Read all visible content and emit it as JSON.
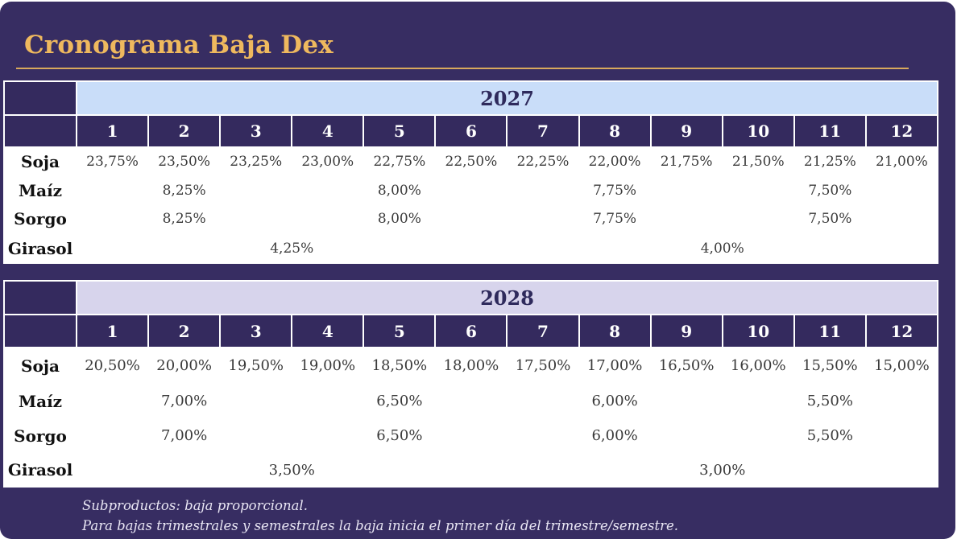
{
  "title": "Cronograma Baja Dex",
  "months": [
    "1",
    "2",
    "3",
    "4",
    "5",
    "6",
    "7",
    "8",
    "9",
    "10",
    "11",
    "12"
  ],
  "tables": [
    {
      "year": "2027",
      "soja": {
        "label": "Soja",
        "values": [
          "23,75%",
          "23,50%",
          "23,25%",
          "23,00%",
          "22,75%",
          "22,50%",
          "22,25%",
          "22,00%",
          "21,75%",
          "21,50%",
          "21,25%",
          "21,00%"
        ]
      },
      "maiz": {
        "label": "Maíz",
        "values": [
          "8,25%",
          "8,00%",
          "7,75%",
          "7,50%"
        ]
      },
      "sorgo": {
        "label": "Sorgo",
        "values": [
          "8,25%",
          "8,00%",
          "7,75%",
          "7,50%"
        ]
      },
      "girasol": {
        "label": "Girasol",
        "values": [
          "4,25%",
          "4,00%"
        ]
      }
    },
    {
      "year": "2028",
      "soja": {
        "label": "Soja",
        "values": [
          "20,50%",
          "20,00%",
          "19,50%",
          "19,00%",
          "18,50%",
          "18,00%",
          "17,50%",
          "17,00%",
          "16,50%",
          "16,00%",
          "15,50%",
          "15,00%"
        ]
      },
      "maiz": {
        "label": "Maíz",
        "values": [
          "7,00%",
          "6,50%",
          "6,00%",
          "5,50%"
        ]
      },
      "sorgo": {
        "label": "Sorgo",
        "values": [
          "7,00%",
          "6,50%",
          "6,00%",
          "5,50%"
        ]
      },
      "girasol": {
        "label": "Girasol",
        "values": [
          "3,50%",
          "3,00%"
        ]
      }
    }
  ],
  "footnotes": [
    "Subproductos: baja proporcional.",
    "Para bajas trimestrales y semestrales la baja inicia el primer día del trimestre/semestre."
  ],
  "colors": {
    "background": "#372d62",
    "title": "#efb95e",
    "year_2027_band": "#c9ddf9",
    "year_2028_band": "#d7d4ec"
  }
}
